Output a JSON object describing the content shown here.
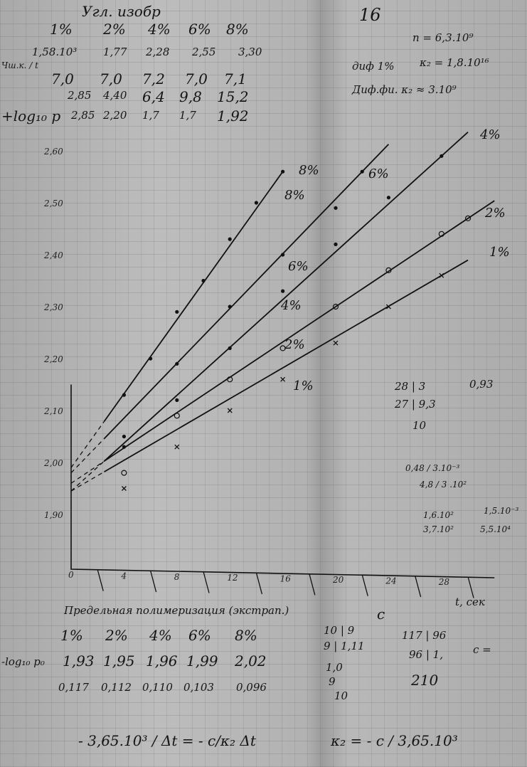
{
  "header": {
    "page_number": "16",
    "title": "Угл. изобр",
    "columns": [
      "1%",
      "2%",
      "4%",
      "6%",
      "8%"
    ],
    "row1": [
      "1,58.10³",
      "1,77",
      "2,28",
      "2,55",
      "3,30"
    ],
    "row2_label": "Чш.к. / t",
    "row2": [
      "7,0",
      "7,0",
      "7,2",
      "7,0",
      "7,1"
    ],
    "row3": [
      "2,85",
      "4,40",
      "6,4",
      "9,8",
      "15,2"
    ],
    "row4_label": "+log₁₀ p",
    "row4": [
      "2,85",
      "2,20",
      "1,7",
      "1,7",
      "1,92"
    ],
    "note_n": "n = 6,3.10⁹",
    "note_dif": "диф 1%",
    "note_k2": "κ₂ = 1,8.10¹⁶",
    "note_dif2": "Диф.фи. κ₂ ≈ 3.10⁹"
  },
  "chart_data": {
    "type": "line",
    "xlabel": "t, сек",
    "ylabel": "",
    "xlim": [
      0,
      32
    ],
    "ylim": [
      1.79,
      2.68
    ],
    "x_ticks": [
      "0",
      "2",
      "4",
      "6",
      "8",
      "10",
      "12",
      "14",
      "16",
      "18",
      "20",
      "22",
      "24",
      "26",
      "28",
      "30"
    ],
    "y_ticks": [
      "1,90",
      "2,00",
      "2,10",
      "2,20",
      "2,30",
      "2,40",
      "2,50",
      "2,60"
    ],
    "y_tick_values": [
      1.9,
      2.0,
      2.1,
      2.2,
      2.3,
      2.4,
      2.5,
      2.6
    ],
    "series": [
      {
        "name": "8%",
        "marker": "dot",
        "intercept": 1.99,
        "x": [
          4,
          6,
          8,
          10,
          12,
          14,
          16
        ],
        "y": [
          2.13,
          2.2,
          2.29,
          2.35,
          2.43,
          2.5,
          2.56
        ]
      },
      {
        "name": "6%",
        "marker": "dot",
        "intercept": 1.98,
        "x": [
          4,
          8,
          12,
          16,
          20,
          22
        ],
        "y": [
          2.05,
          2.19,
          2.3,
          2.4,
          2.49,
          2.56
        ]
      },
      {
        "name": "4%",
        "marker": "dot",
        "intercept": 1.945,
        "x": [
          4,
          8,
          12,
          16,
          20,
          24,
          28
        ],
        "y": [
          2.03,
          2.12,
          2.22,
          2.33,
          2.42,
          2.51,
          2.59
        ]
      },
      {
        "name": "2%",
        "marker": "circle",
        "intercept": 1.96,
        "x": [
          4,
          8,
          12,
          16,
          20,
          24,
          28,
          30
        ],
        "y": [
          1.98,
          2.09,
          2.16,
          2.22,
          2.3,
          2.37,
          2.44,
          2.47
        ]
      },
      {
        "name": "1%",
        "marker": "cross",
        "intercept": 1.945,
        "x": [
          4,
          8,
          12,
          16,
          20,
          24,
          28
        ],
        "y": [
          1.95,
          2.03,
          2.1,
          2.16,
          2.23,
          2.3,
          2.36
        ]
      }
    ],
    "line_labels": [
      "8%",
      "8%",
      "6%",
      "4%",
      "2%",
      "1%",
      "6%",
      "4%",
      "2%",
      "1%"
    ]
  },
  "bottom": {
    "title": "Предельная полимеризация (экстрап.)",
    "columns": [
      "1%",
      "2%",
      "4%",
      "6%",
      "8%"
    ],
    "row_label": "-log₁₀ p₀",
    "row1": [
      "1,93",
      "1,95",
      "1,96",
      "1,99",
      "2,02"
    ],
    "row2": [
      "0,117",
      "0,112",
      "0,110",
      "0,103",
      "0,096"
    ],
    "formula1": "- 3,65.10³ / Δt = - c/κ₂ Δt",
    "formula2": "κ₂ = - c / 3,65.10³",
    "c_label": "c",
    "calc1": [
      "10 | 9",
      "9 | 1,11",
      "1,0",
      "9",
      "10"
    ],
    "calc2": [
      "117 | 96",
      "96 | 1,",
      "210",
      "c ="
    ]
  },
  "side_calcs": [
    "28 | 3",
    "27 | 9,3",
    "10",
    "0,93",
    "0,48 / 3.10⁻³",
    "4,8 / 3 .10²",
    "1,6.10²",
    "3,7.10²",
    "1,5.10⁻³",
    "5,5.10⁴"
  ]
}
